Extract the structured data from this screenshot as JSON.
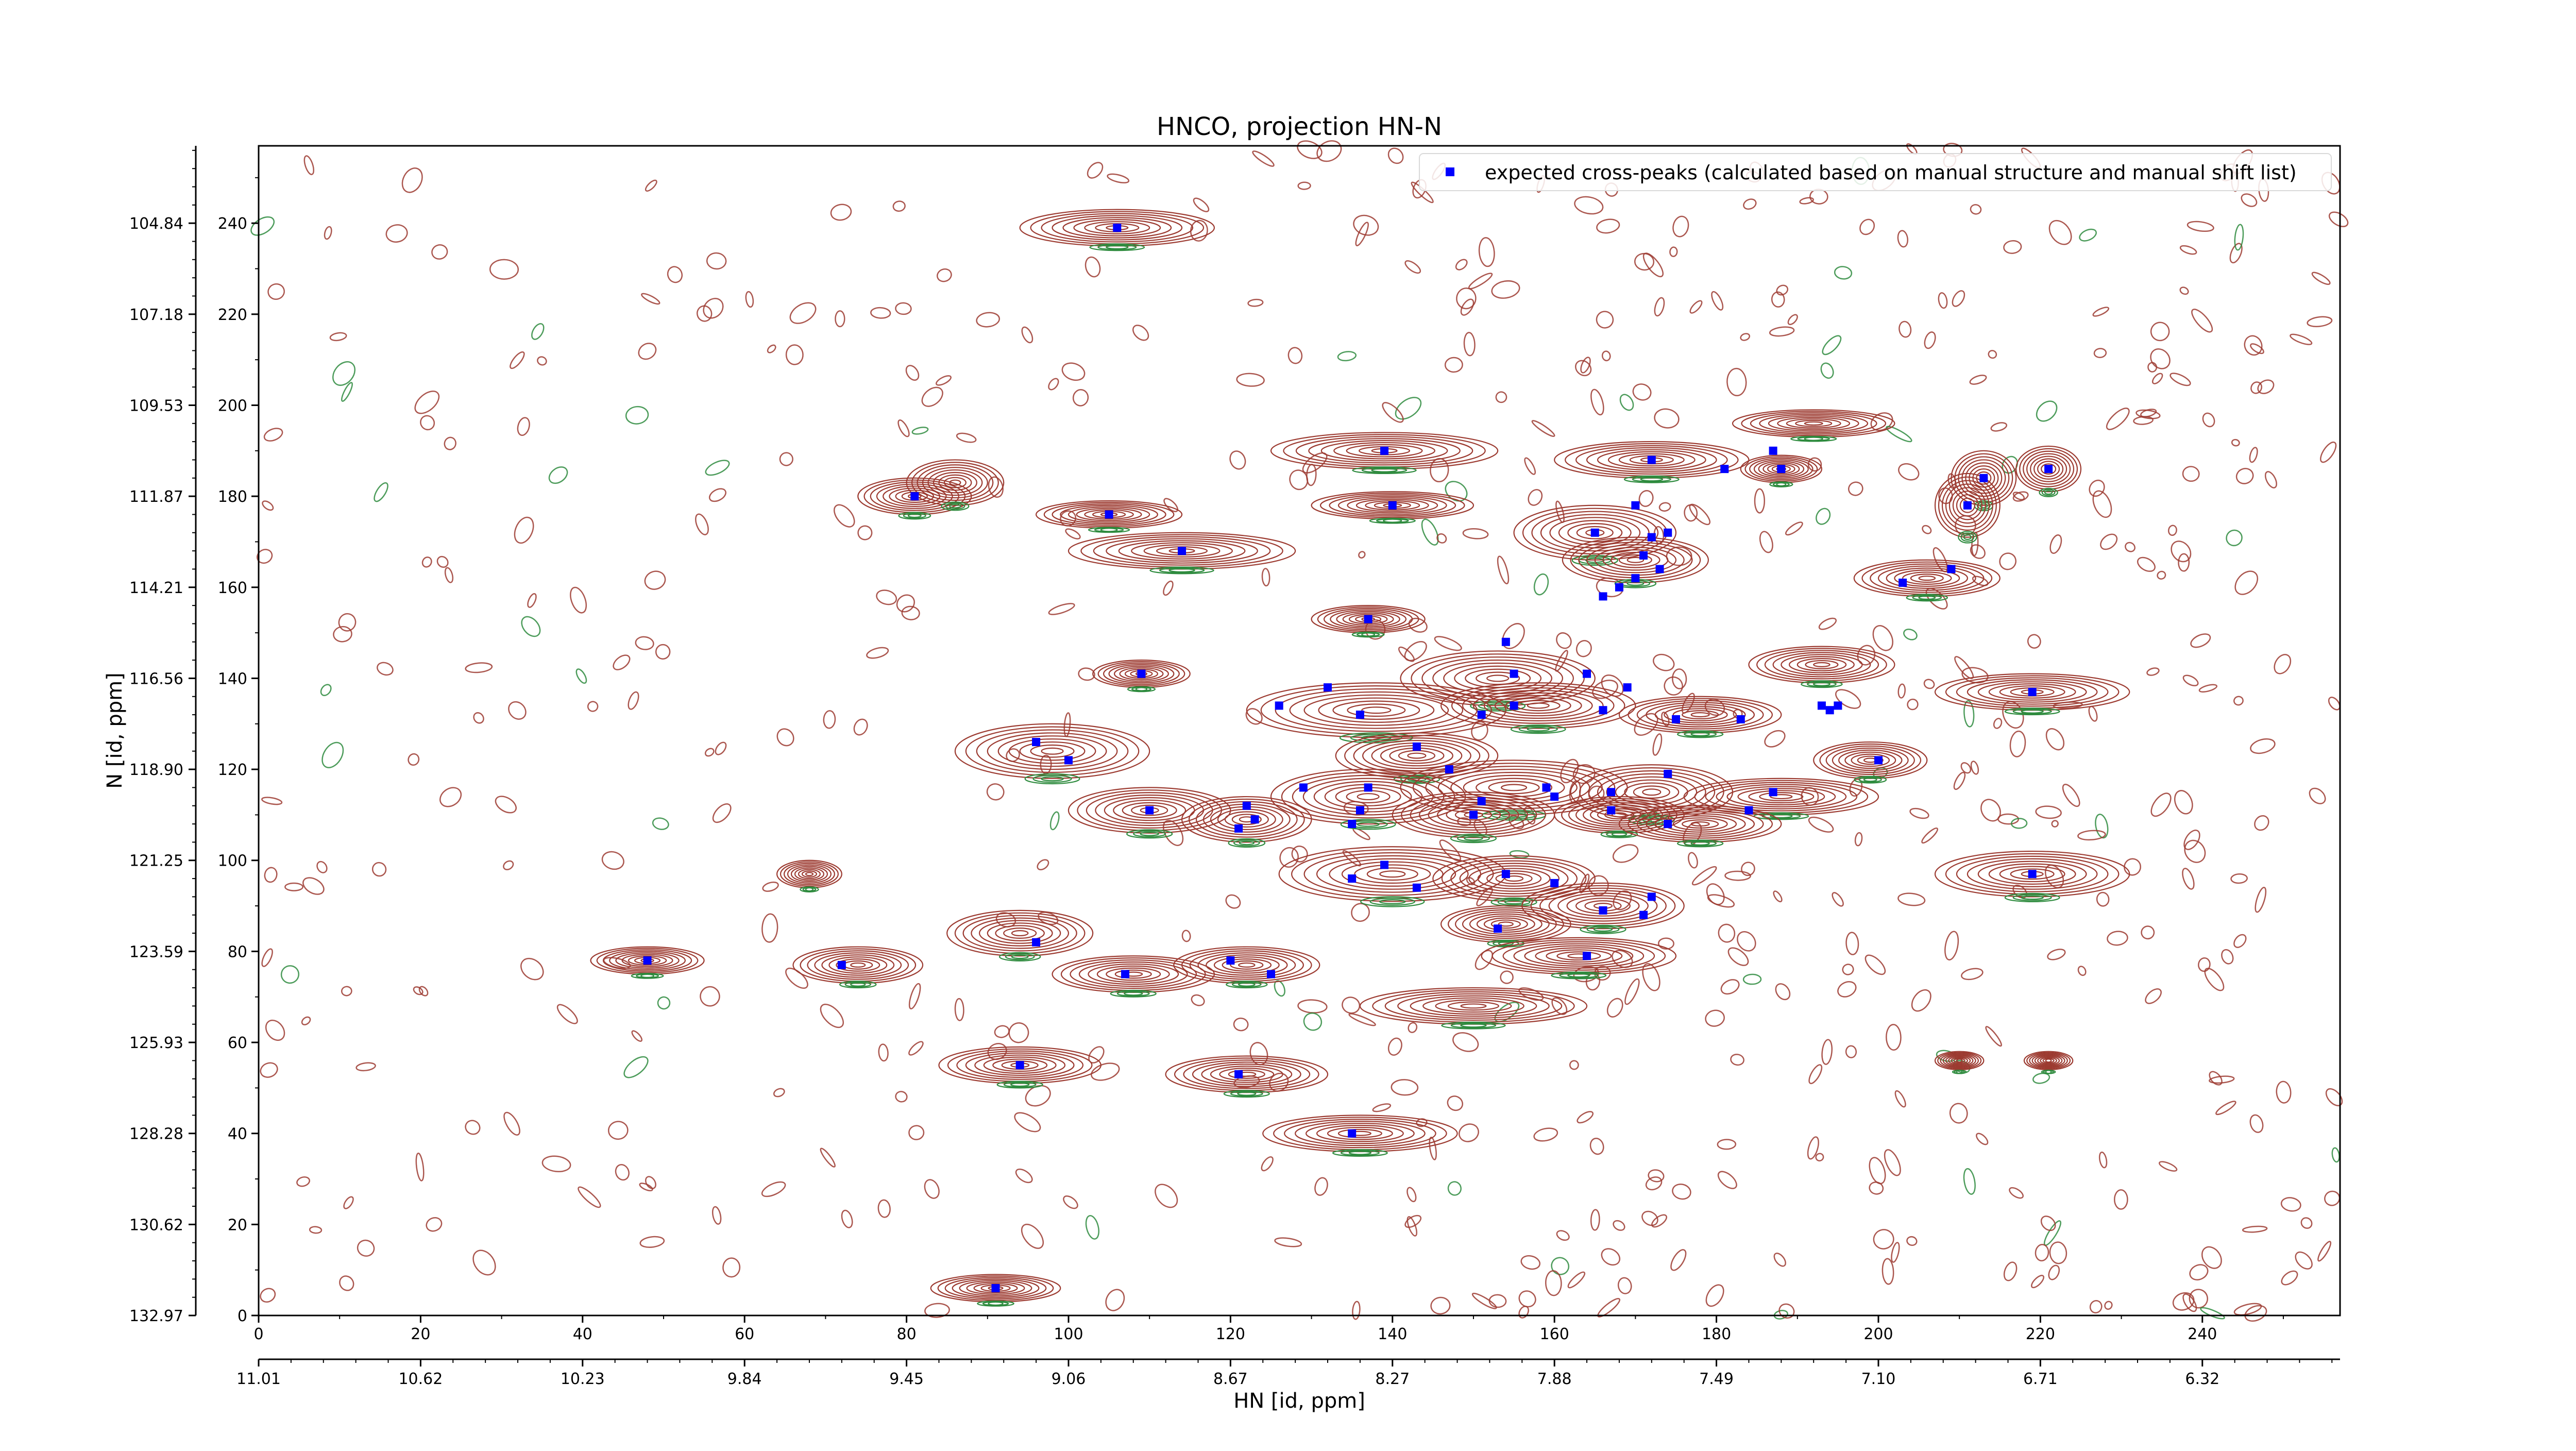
{
  "chart_data": {
    "type": "scatter",
    "title": "HNCO, projection HN-N",
    "xlabel": "HN [id, ppm]",
    "ylabel": "N [id, ppm]",
    "x_index_ticks": [
      "0",
      "20",
      "40",
      "60",
      "80",
      "100",
      "120",
      "140",
      "160",
      "180",
      "200",
      "220",
      "240"
    ],
    "x_ppm_ticks": [
      "11.01",
      "10.62",
      "10.23",
      "9.84",
      "9.45",
      "9.06",
      "8.67",
      "8.27",
      "7.88",
      "7.49",
      "7.10",
      "6.71",
      "6.32"
    ],
    "y_index_ticks": [
      "0",
      "20",
      "40",
      "60",
      "80",
      "100",
      "120",
      "140",
      "160",
      "180",
      "200",
      "220",
      "240"
    ],
    "y_ppm_ticks": [
      "132.97",
      "130.62",
      "128.28",
      "125.93",
      "123.59",
      "121.25",
      "118.90",
      "116.56",
      "114.21",
      "111.87",
      "109.53",
      "107.18",
      "104.84"
    ],
    "xlim": [
      0,
      257
    ],
    "ylim": [
      0,
      257
    ],
    "grid": false,
    "legend_position": "top-right",
    "series": [
      {
        "name": "expected cross-peaks (calculated based on manual structure and manual shift list)",
        "color": "#0000ff",
        "marker": "square",
        "points": [
          [
            106,
            239
          ],
          [
            81,
            180
          ],
          [
            105,
            176
          ],
          [
            114,
            168
          ],
          [
            139,
            190
          ],
          [
            140,
            178
          ],
          [
            172,
            188
          ],
          [
            187,
            190
          ],
          [
            188,
            186
          ],
          [
            181,
            186
          ],
          [
            213,
            184
          ],
          [
            221,
            186
          ],
          [
            211,
            178
          ],
          [
            209,
            164
          ],
          [
            203,
            161
          ],
          [
            165,
            172
          ],
          [
            170,
            178
          ],
          [
            172,
            171
          ],
          [
            174,
            172
          ],
          [
            173,
            164
          ],
          [
            170,
            162
          ],
          [
            168,
            160
          ],
          [
            166,
            158
          ],
          [
            171,
            167
          ],
          [
            137,
            153
          ],
          [
            109,
            141
          ],
          [
            154,
            148
          ],
          [
            155,
            141
          ],
          [
            164,
            141
          ],
          [
            169,
            138
          ],
          [
            132,
            138
          ],
          [
            126,
            134
          ],
          [
            136,
            132
          ],
          [
            151,
            132
          ],
          [
            155,
            134
          ],
          [
            166,
            133
          ],
          [
            175,
            131
          ],
          [
            183,
            131
          ],
          [
            193,
            134
          ],
          [
            194,
            133
          ],
          [
            195,
            134
          ],
          [
            219,
            137
          ],
          [
            96,
            126
          ],
          [
            100,
            122
          ],
          [
            143,
            125
          ],
          [
            147,
            120
          ],
          [
            129,
            116
          ],
          [
            137,
            116
          ],
          [
            151,
            113
          ],
          [
            159,
            116
          ],
          [
            160,
            114
          ],
          [
            167,
            115
          ],
          [
            174,
            119
          ],
          [
            187,
            115
          ],
          [
            200,
            122
          ],
          [
            110,
            111
          ],
          [
            122,
            112
          ],
          [
            123,
            109
          ],
          [
            121,
            107
          ],
          [
            136,
            111
          ],
          [
            135,
            108
          ],
          [
            150,
            110
          ],
          [
            167,
            111
          ],
          [
            174,
            108
          ],
          [
            184,
            111
          ],
          [
            139,
            99
          ],
          [
            135,
            96
          ],
          [
            143,
            94
          ],
          [
            154,
            97
          ],
          [
            160,
            95
          ],
          [
            166,
            89
          ],
          [
            171,
            88
          ],
          [
            172,
            92
          ],
          [
            153,
            85
          ],
          [
            164,
            79
          ],
          [
            219,
            97
          ],
          [
            48,
            78
          ],
          [
            72,
            77
          ],
          [
            96,
            82
          ],
          [
            107,
            75
          ],
          [
            120,
            78
          ],
          [
            125,
            75
          ],
          [
            94,
            55
          ],
          [
            121,
            53
          ],
          [
            135,
            40
          ],
          [
            91,
            6
          ]
        ]
      }
    ],
    "spectrum_palette": {
      "positive": "#9c3a30",
      "negative": "#2e8b3e"
    },
    "spectrum_peaks": [
      [
        106,
        239,
        12,
        4
      ],
      [
        81,
        180,
        7,
        4
      ],
      [
        86,
        183,
        6,
        5
      ],
      [
        105,
        176,
        9,
        3
      ],
      [
        114,
        168,
        14,
        4
      ],
      [
        139,
        190,
        14,
        4
      ],
      [
        140,
        178,
        10,
        3
      ],
      [
        172,
        188,
        12,
        4
      ],
      [
        192,
        196,
        10,
        3
      ],
      [
        188,
        186,
        5,
        3
      ],
      [
        213,
        184,
        4,
        6
      ],
      [
        221,
        186,
        4,
        5
      ],
      [
        211,
        178,
        4,
        7
      ],
      [
        206,
        162,
        9,
        4
      ],
      [
        165,
        172,
        10,
        6
      ],
      [
        170,
        166,
        9,
        5
      ],
      [
        137,
        153,
        7,
        3
      ],
      [
        109,
        141,
        6,
        3
      ],
      [
        153,
        140,
        12,
        6
      ],
      [
        138,
        133,
        16,
        6
      ],
      [
        158,
        134,
        12,
        5
      ],
      [
        178,
        132,
        10,
        4
      ],
      [
        193,
        143,
        9,
        4
      ],
      [
        219,
        137,
        12,
        4
      ],
      [
        98,
        124,
        12,
        6
      ],
      [
        143,
        123,
        10,
        5
      ],
      [
        137,
        114,
        12,
        6
      ],
      [
        155,
        116,
        14,
        6
      ],
      [
        172,
        115,
        10,
        6
      ],
      [
        188,
        114,
        12,
        4
      ],
      [
        199,
        122,
        7,
        4
      ],
      [
        110,
        111,
        10,
        5
      ],
      [
        122,
        109,
        8,
        5
      ],
      [
        150,
        110,
        10,
        5
      ],
      [
        168,
        110,
        8,
        4
      ],
      [
        178,
        108,
        10,
        4
      ],
      [
        140,
        97,
        14,
        6
      ],
      [
        155,
        96,
        10,
        5
      ],
      [
        166,
        90,
        10,
        5
      ],
      [
        154,
        86,
        8,
        4
      ],
      [
        163,
        79,
        12,
        4
      ],
      [
        219,
        97,
        12,
        5
      ],
      [
        48,
        78,
        7,
        3
      ],
      [
        74,
        77,
        8,
        4
      ],
      [
        94,
        84,
        9,
        5
      ],
      [
        108,
        75,
        10,
        4
      ],
      [
        122,
        77,
        9,
        4
      ],
      [
        150,
        68,
        14,
        4
      ],
      [
        94,
        55,
        10,
        4
      ],
      [
        122,
        53,
        10,
        4
      ],
      [
        136,
        40,
        12,
        4
      ],
      [
        91,
        6,
        8,
        3
      ],
      [
        68,
        97,
        4,
        3
      ],
      [
        221,
        56,
        3,
        2
      ],
      [
        210,
        56,
        3,
        2
      ]
    ]
  }
}
